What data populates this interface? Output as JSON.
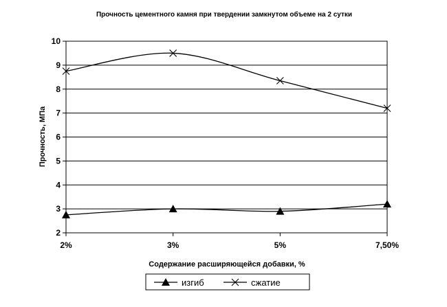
{
  "chart_data": {
    "type": "line",
    "title": "Прочность цементного камня при твердении замкнутом объеме на 2 сутки",
    "xlabel": "Содержание расширяющейся добавки, %",
    "ylabel": "Прочность, МПа",
    "categories": [
      "2%",
      "3%",
      "5%",
      "7,50%"
    ],
    "ylim": [
      2,
      10
    ],
    "yticks": [
      "2",
      "3",
      "4",
      "5",
      "6",
      "7",
      "8",
      "9",
      "10"
    ],
    "grid": true,
    "smooth": true,
    "legend_position": "bottom",
    "series": [
      {
        "name": "изгиб",
        "values": [
          2.75,
          3.0,
          2.9,
          3.2
        ],
        "marker": "triangle",
        "color": "#000000"
      },
      {
        "name": "сжатие",
        "values": [
          8.75,
          9.5,
          8.35,
          7.2
        ],
        "marker": "x",
        "color": "#000000"
      }
    ]
  }
}
